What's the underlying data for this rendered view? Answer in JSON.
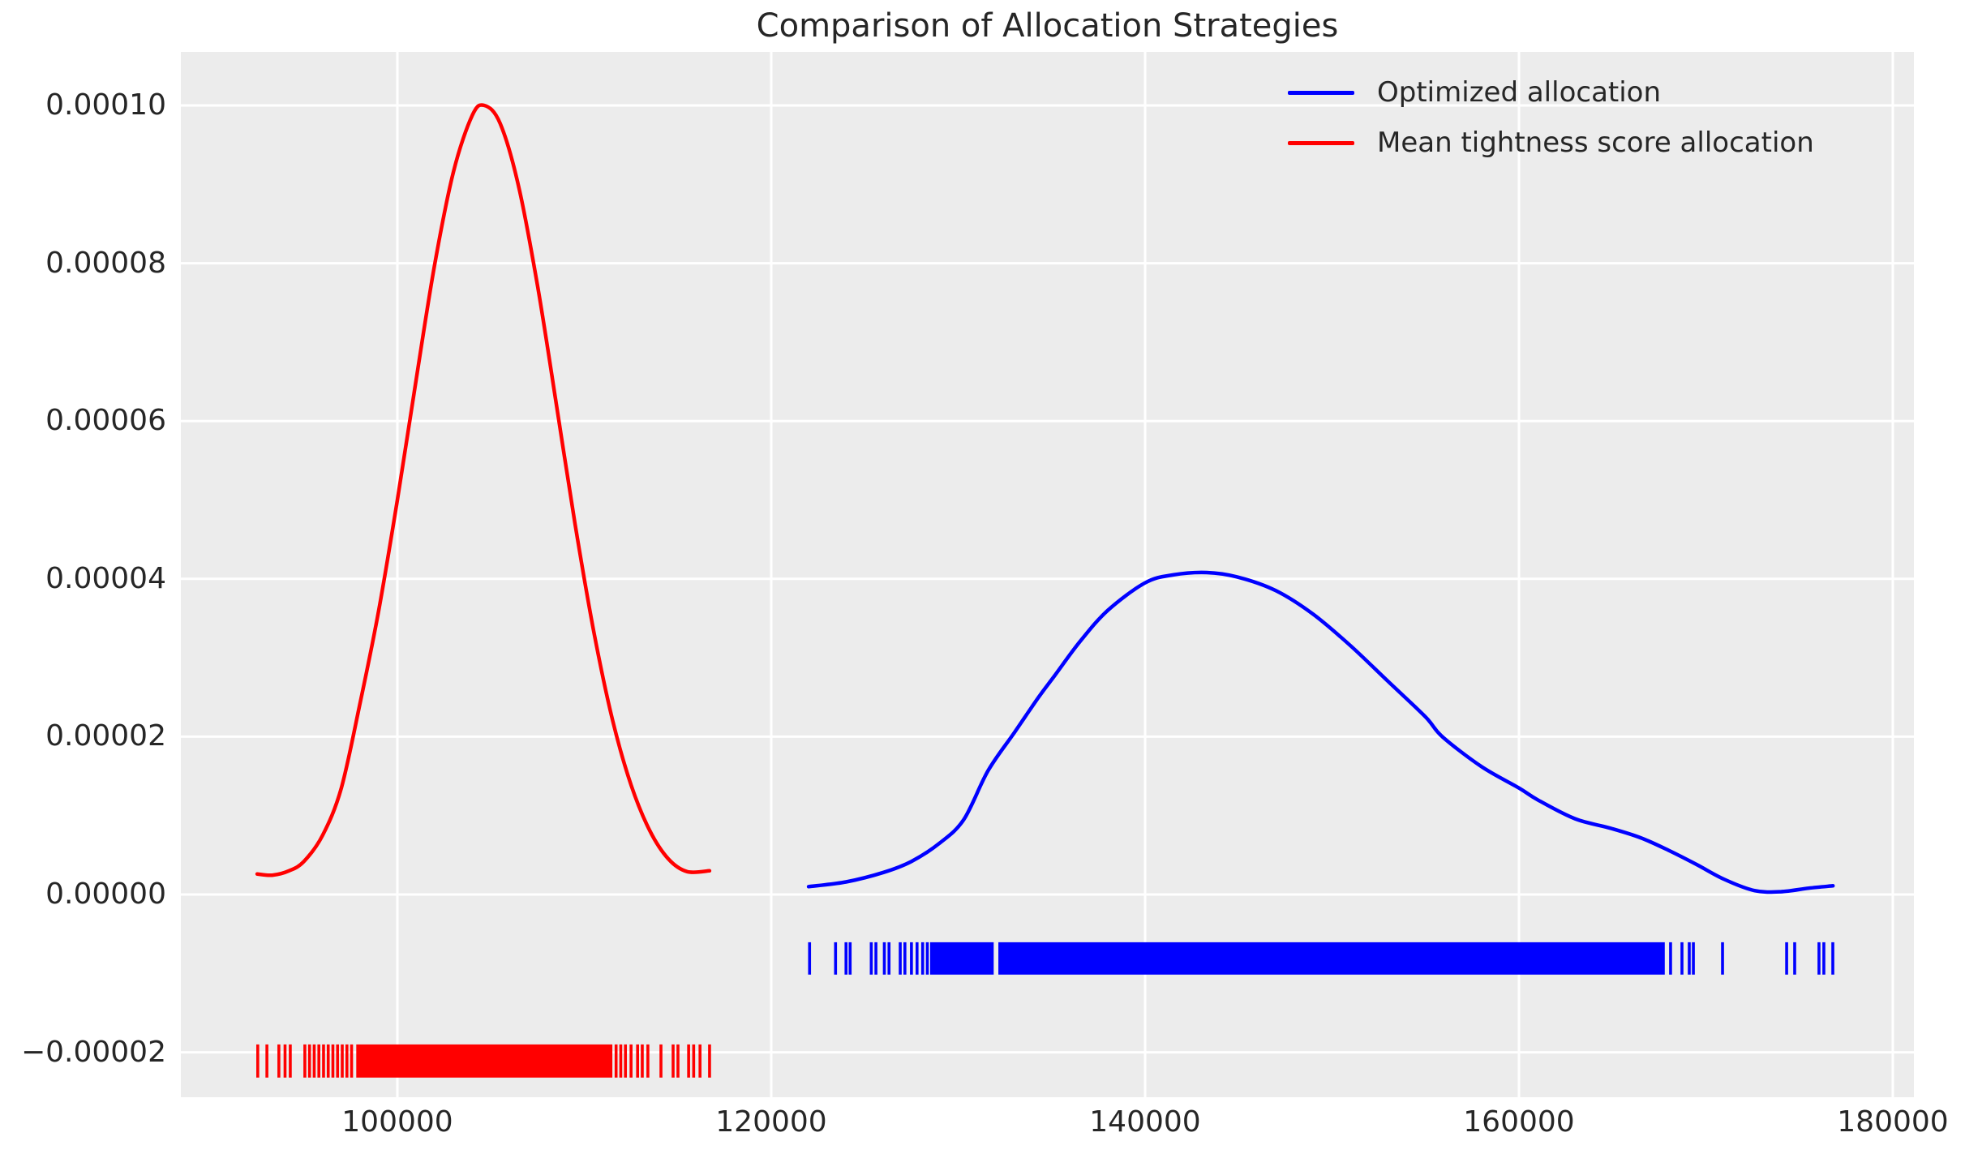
{
  "figure": {
    "background": "#ffffff",
    "plot_background": "#ececec",
    "grid_color": "#ffffff",
    "text_color": "#262626"
  },
  "chart_data": {
    "type": "line",
    "title": "Comparison of Allocation Strategies",
    "xlabel": "",
    "ylabel": "",
    "grid": true,
    "legend_position": "upper right",
    "xlim": [
      88416,
      181128
    ],
    "ylim": [
      -2.569e-05,
      0.00010678
    ],
    "x_ticks": {
      "values": [
        100000,
        120000,
        140000,
        160000,
        180000
      ],
      "labels": [
        "100000",
        "120000",
        "140000",
        "160000",
        "180000"
      ]
    },
    "y_ticks": {
      "values": [
        -2e-05,
        0.0,
        2e-05,
        4e-05,
        6e-05,
        8e-05,
        0.0001
      ],
      "labels": [
        "−0.00002",
        "0.00000",
        "0.00002",
        "0.00004",
        "0.00006",
        "0.00008",
        "0.00010"
      ]
    },
    "series": [
      {
        "name": "Optimized allocation",
        "color": "#0000ff",
        "kde_peak": {
          "x": 143300,
          "y": 4.08e-05
        },
        "points": [
          [
            122000,
            1e-06
          ],
          [
            124000,
            1.6e-06
          ],
          [
            126000,
            2.8e-06
          ],
          [
            127500,
            4.2e-06
          ],
          [
            129000,
            6.5e-06
          ],
          [
            130300,
            9.5e-06
          ],
          [
            131600,
            1.57e-05
          ],
          [
            133000,
            2.05e-05
          ],
          [
            134300,
            2.5e-05
          ],
          [
            135150,
            2.77e-05
          ],
          [
            136500,
            3.2e-05
          ],
          [
            138000,
            3.6e-05
          ],
          [
            140000,
            3.95e-05
          ],
          [
            141500,
            4.05e-05
          ],
          [
            143300,
            4.08e-05
          ],
          [
            145000,
            4.02e-05
          ],
          [
            147000,
            3.85e-05
          ],
          [
            149000,
            3.55e-05
          ],
          [
            151000,
            3.15e-05
          ],
          [
            153000,
            2.7e-05
          ],
          [
            155000,
            2.25e-05
          ],
          [
            155900,
            2e-05
          ],
          [
            158000,
            1.62e-05
          ],
          [
            160000,
            1.35e-05
          ],
          [
            161000,
            1.2e-05
          ],
          [
            163000,
            9.6e-06
          ],
          [
            164900,
            8.4e-06
          ],
          [
            166500,
            7.2e-06
          ],
          [
            168000,
            5.6e-06
          ],
          [
            169500,
            3.8e-06
          ],
          [
            171000,
            1.9e-06
          ],
          [
            172600,
            5e-07
          ],
          [
            174000,
            3.5e-07
          ],
          [
            175500,
            8e-07
          ],
          [
            176800,
            1.1e-06
          ]
        ],
        "rug": {
          "y_center": -8.1e-06,
          "height": 4.1e-06,
          "dense_ranges": [
            [
              128500,
              131900
            ],
            [
              132150,
              167800
            ]
          ],
          "ticks": [
            122050,
            123440,
            124000,
            124220,
            125350,
            125600,
            126050,
            126300,
            126900,
            127150,
            127500,
            127800,
            128100,
            128350,
            168110,
            168720,
            169110,
            169330,
            170890,
            174320,
            174750,
            176050,
            176310,
            176790
          ]
        }
      },
      {
        "name": "Mean tightness score allocation",
        "color": "#ff0000",
        "kde_peak": {
          "x": 104650,
          "y": 0.0001
        },
        "points": [
          [
            92500,
            2.6e-06
          ],
          [
            93300,
            2.45e-06
          ],
          [
            94200,
            3e-06
          ],
          [
            95000,
            4.2e-06
          ],
          [
            96000,
            7.5e-06
          ],
          [
            97000,
            1.35e-05
          ],
          [
            98000,
            2.42e-05
          ],
          [
            99000,
            3.6e-05
          ],
          [
            100000,
            5e-05
          ],
          [
            101000,
            6.52e-05
          ],
          [
            102000,
            7.99e-05
          ],
          [
            103000,
            9.16e-05
          ],
          [
            104000,
            9.87e-05
          ],
          [
            104650,
            0.0001
          ],
          [
            105500,
            9.77e-05
          ],
          [
            106500,
            8.96e-05
          ],
          [
            107500,
            7.71e-05
          ],
          [
            108500,
            6.22e-05
          ],
          [
            109500,
            4.7e-05
          ],
          [
            110500,
            3.34e-05
          ],
          [
            111500,
            2.22e-05
          ],
          [
            112500,
            1.39e-05
          ],
          [
            113500,
            8.1e-06
          ],
          [
            114500,
            4.5e-06
          ],
          [
            115500,
            2.9e-06
          ],
          [
            116700,
            3e-06
          ]
        ],
        "rug": {
          "y_center": -2.11e-05,
          "height": 4.2e-06,
          "dense_ranges": [
            [
              97800,
              111500
            ]
          ],
          "ticks": [
            92530,
            93020,
            93660,
            93990,
            94270,
            95050,
            95300,
            95550,
            95800,
            96050,
            96300,
            96550,
            96800,
            97050,
            97300,
            97550,
            111700,
            111950,
            112200,
            112500,
            112850,
            113100,
            113400,
            114100,
            114750,
            115010,
            115580,
            115850,
            116190,
            116700
          ]
        }
      }
    ]
  }
}
